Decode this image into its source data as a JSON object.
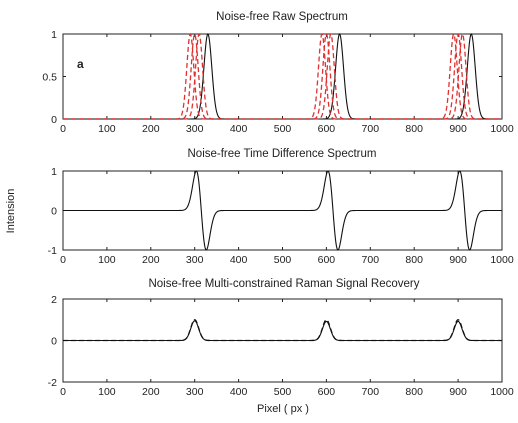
{
  "chart_data": [
    {
      "type": "line",
      "title": "Noise-free Raw Spectrum",
      "panel_label": "a",
      "xlim": [
        0,
        1000
      ],
      "ylim": [
        0,
        1
      ],
      "x_ticks": [
        0,
        100,
        200,
        300,
        400,
        500,
        600,
        700,
        800,
        900,
        1000
      ],
      "y_ticks": [
        0,
        0.5,
        1
      ],
      "series": [
        {
          "color": "#111111",
          "style": "solid",
          "peaks": [
            {
              "center": 330,
              "height": 1.0,
              "width": 9
            },
            {
              "center": 630,
              "height": 1.0,
              "width": 9
            },
            {
              "center": 930,
              "height": 1.0,
              "width": 9
            }
          ]
        },
        {
          "color": "#e03030",
          "style": "dashed",
          "peaks": [
            {
              "center": 290,
              "height": 1.0,
              "width": 8
            },
            {
              "center": 590,
              "height": 1.0,
              "width": 8
            },
            {
              "center": 890,
              "height": 1.0,
              "width": 8
            }
          ]
        },
        {
          "color": "#e03030",
          "style": "dashed",
          "peaks": [
            {
              "center": 300,
              "height": 1.0,
              "width": 8
            },
            {
              "center": 600,
              "height": 1.0,
              "width": 8
            },
            {
              "center": 900,
              "height": 1.0,
              "width": 8
            }
          ]
        },
        {
          "color": "#e03030",
          "style": "dashed",
          "peaks": [
            {
              "center": 310,
              "height": 1.0,
              "width": 8
            },
            {
              "center": 610,
              "height": 1.0,
              "width": 8
            },
            {
              "center": 910,
              "height": 1.0,
              "width": 8
            }
          ]
        }
      ]
    },
    {
      "type": "line",
      "title": "Noise-free Time Difference Spectrum",
      "xlim": [
        0,
        1000
      ],
      "ylim": [
        -1,
        1
      ],
      "x_ticks": [
        0,
        100,
        200,
        300,
        400,
        500,
        600,
        700,
        800,
        900,
        1000
      ],
      "y_ticks": [
        -1,
        0,
        1
      ],
      "series": [
        {
          "color": "#111111",
          "style": "solid",
          "derivative_peaks": [
            {
              "center": 315,
              "height": 1.0,
              "halfspan": 16
            },
            {
              "center": 615,
              "height": 1.0,
              "halfspan": 16
            },
            {
              "center": 915,
              "height": 1.0,
              "halfspan": 16
            }
          ]
        }
      ]
    },
    {
      "type": "line",
      "title": "Noise-free Multi-constrained Raman Signal Recovery",
      "xlabel": "Pixel ( px )",
      "xlim": [
        0,
        1000
      ],
      "ylim": [
        -2,
        2
      ],
      "x_ticks": [
        0,
        100,
        200,
        300,
        400,
        500,
        600,
        700,
        800,
        900,
        1000
      ],
      "y_ticks": [
        -2,
        0,
        2
      ],
      "series": [
        {
          "color": "#111111",
          "style": "dashed",
          "peaks": [
            {
              "center": 300,
              "height": 1.0,
              "width": 9
            },
            {
              "center": 600,
              "height": 1.0,
              "width": 9
            },
            {
              "center": 900,
              "height": 1.0,
              "width": 9
            }
          ]
        },
        {
          "color": "#111111",
          "style": "solid",
          "peaks": [
            {
              "center": 300,
              "height": 0.95,
              "width": 9
            },
            {
              "center": 600,
              "height": 0.92,
              "width": 9
            },
            {
              "center": 900,
              "height": 0.92,
              "width": 9
            }
          ]
        }
      ]
    }
  ],
  "shared_ylabel": "Intension"
}
